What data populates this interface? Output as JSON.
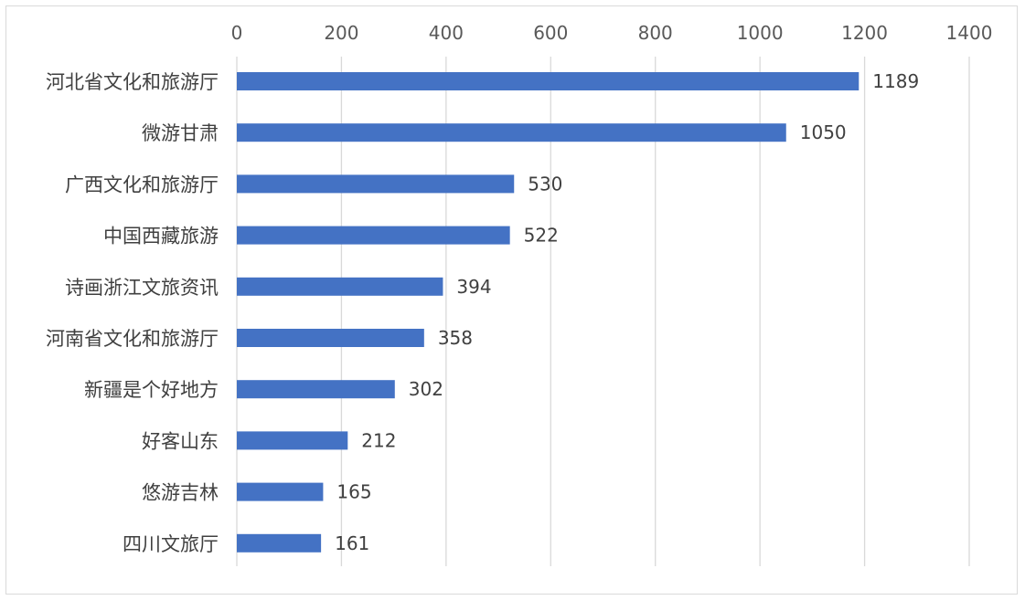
{
  "chart_data": {
    "type": "bar",
    "orientation": "horizontal",
    "title": "",
    "xlabel": "",
    "ylabel": "",
    "xlim": [
      0,
      1400
    ],
    "x_ticks": [
      0,
      200,
      400,
      600,
      800,
      1000,
      1200,
      1400
    ],
    "x_tick_labels": [
      "0",
      "200",
      "400",
      "600",
      "800",
      "1000",
      "1200",
      "1400"
    ],
    "x_axis_position": "top",
    "grid": true,
    "legend": "none",
    "bar_color": "#4472C4",
    "categories": [
      "河北省文化和旅游厅",
      "微游甘肃",
      "广西文化和旅游厅",
      "中国西藏旅游",
      "诗画浙江文旅资讯",
      "河南省文化和旅游厅",
      "新疆是个好地方",
      "好客山东",
      "悠游吉林",
      "四川文旅厅"
    ],
    "values": [
      1189,
      1050,
      530,
      522,
      394,
      358,
      302,
      212,
      165,
      161
    ],
    "value_labels": [
      "1189",
      "1050",
      "530",
      "522",
      "394",
      "358",
      "302",
      "212",
      "165",
      "161"
    ]
  }
}
